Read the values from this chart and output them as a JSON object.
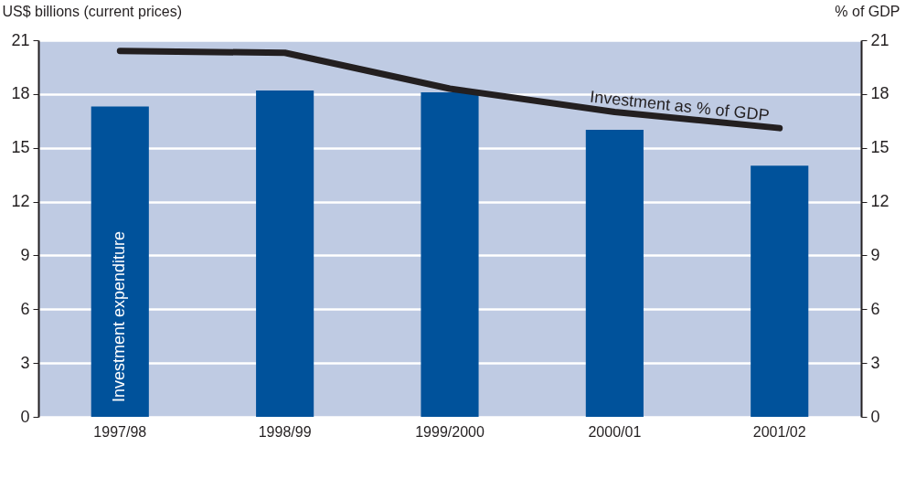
{
  "chart_data": {
    "type": "bar",
    "categories": [
      "1997/98",
      "1998/99",
      "1999/2000",
      "2000/01",
      "2001/02"
    ],
    "series": [
      {
        "name": "Investment expenditure",
        "color": "#00529b",
        "values": [
          17.3,
          18.2,
          18.1,
          16.0,
          14.0
        ]
      },
      {
        "name": "Investment as % of GDP",
        "type": "line",
        "axis": "y2",
        "color": "#231f20",
        "values": [
          20.4,
          20.3,
          18.3,
          17.0,
          16.1
        ]
      }
    ],
    "ylabel": "US$ billions (current prices)",
    "y2label": "% of GDP",
    "ylim": [
      0,
      21
    ],
    "yticks": [
      0,
      3,
      6,
      9,
      12,
      15,
      18,
      21
    ],
    "y2lim": [
      0,
      21
    ],
    "y2ticks": [
      0,
      3,
      6,
      9,
      12,
      15,
      18,
      21
    ],
    "grid": "y",
    "line_style": "solid"
  }
}
